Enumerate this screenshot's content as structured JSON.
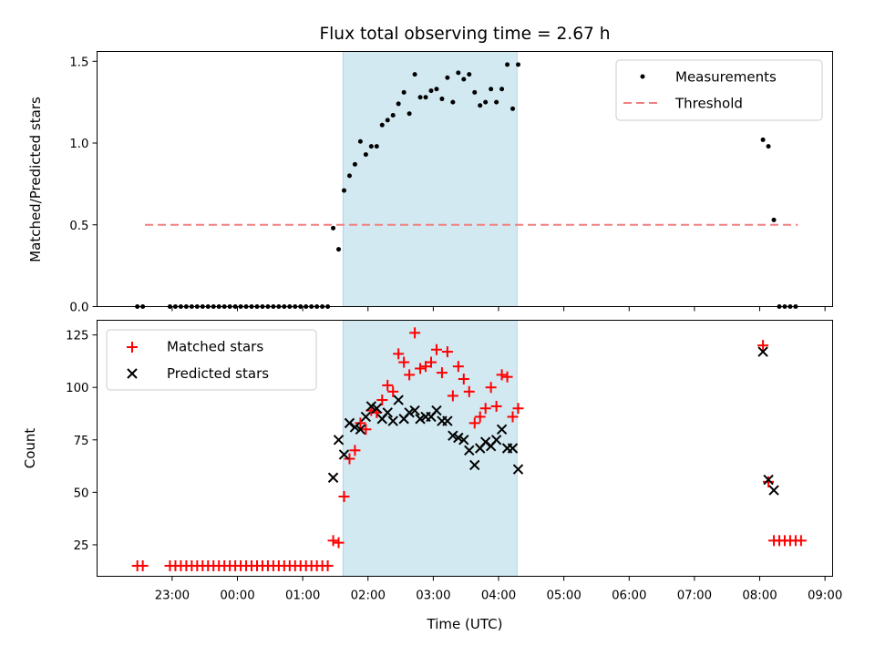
{
  "chart_data": [
    {
      "type": "scatter",
      "title": "Flux total observing time = 2.67 h",
      "ylabel": "Matched/Predicted stars",
      "ylim": [
        0,
        1.56
      ],
      "yticks": [
        0.0,
        0.5,
        1.0,
        1.5
      ],
      "ytick_labels": [
        "0.0",
        "0.5",
        "1.0",
        "1.5"
      ],
      "shaded_span": {
        "x_start": "01:37",
        "x_end": "04:17",
        "color": "#d2e9f1"
      },
      "legend": {
        "position": "top-right",
        "entries": [
          "Measurements",
          "Threshold"
        ]
      },
      "threshold": {
        "name": "Threshold",
        "y": 0.5,
        "x_start": "22:35",
        "x_end": "08:35",
        "color": "#f08080",
        "style": "dashed"
      },
      "series": [
        {
          "name": "Measurements",
          "color": "#000000",
          "marker": "dot",
          "points": [
            {
              "x": "22:28",
              "y": 0
            },
            {
              "x": "22:33",
              "y": 0
            },
            {
              "x": "22:58",
              "y": 0
            },
            {
              "x": "23:03",
              "y": 0
            },
            {
              "x": "23:08",
              "y": 0
            },
            {
              "x": "23:13",
              "y": 0
            },
            {
              "x": "23:18",
              "y": 0
            },
            {
              "x": "23:23",
              "y": 0
            },
            {
              "x": "23:28",
              "y": 0
            },
            {
              "x": "23:33",
              "y": 0
            },
            {
              "x": "23:38",
              "y": 0
            },
            {
              "x": "23:43",
              "y": 0
            },
            {
              "x": "23:48",
              "y": 0
            },
            {
              "x": "23:53",
              "y": 0
            },
            {
              "x": "23:58",
              "y": 0
            },
            {
              "x": "00:03",
              "y": 0
            },
            {
              "x": "00:08",
              "y": 0
            },
            {
              "x": "00:13",
              "y": 0
            },
            {
              "x": "00:18",
              "y": 0
            },
            {
              "x": "00:23",
              "y": 0
            },
            {
              "x": "00:28",
              "y": 0
            },
            {
              "x": "00:33",
              "y": 0
            },
            {
              "x": "00:38",
              "y": 0
            },
            {
              "x": "00:43",
              "y": 0
            },
            {
              "x": "00:48",
              "y": 0
            },
            {
              "x": "00:53",
              "y": 0
            },
            {
              "x": "00:58",
              "y": 0
            },
            {
              "x": "01:03",
              "y": 0
            },
            {
              "x": "01:08",
              "y": 0
            },
            {
              "x": "01:13",
              "y": 0
            },
            {
              "x": "01:18",
              "y": 0
            },
            {
              "x": "01:23",
              "y": 0
            },
            {
              "x": "01:28",
              "y": 0.48
            },
            {
              "x": "01:33",
              "y": 0.35
            },
            {
              "x": "01:38",
              "y": 0.71
            },
            {
              "x": "01:43",
              "y": 0.8
            },
            {
              "x": "01:48",
              "y": 0.87
            },
            {
              "x": "01:53",
              "y": 1.01
            },
            {
              "x": "01:58",
              "y": 0.93
            },
            {
              "x": "02:03",
              "y": 0.98
            },
            {
              "x": "02:08",
              "y": 0.98
            },
            {
              "x": "02:13",
              "y": 1.11
            },
            {
              "x": "02:18",
              "y": 1.14
            },
            {
              "x": "02:23",
              "y": 1.17
            },
            {
              "x": "02:28",
              "y": 1.24
            },
            {
              "x": "02:33",
              "y": 1.31
            },
            {
              "x": "02:38",
              "y": 1.18
            },
            {
              "x": "02:43",
              "y": 1.42
            },
            {
              "x": "02:48",
              "y": 1.28
            },
            {
              "x": "02:53",
              "y": 1.28
            },
            {
              "x": "02:58",
              "y": 1.32
            },
            {
              "x": "03:03",
              "y": 1.33
            },
            {
              "x": "03:08",
              "y": 1.27
            },
            {
              "x": "03:13",
              "y": 1.4
            },
            {
              "x": "03:18",
              "y": 1.25
            },
            {
              "x": "03:23",
              "y": 1.43
            },
            {
              "x": "03:28",
              "y": 1.39
            },
            {
              "x": "03:33",
              "y": 1.42
            },
            {
              "x": "03:38",
              "y": 1.31
            },
            {
              "x": "03:43",
              "y": 1.23
            },
            {
              "x": "03:48",
              "y": 1.25
            },
            {
              "x": "03:53",
              "y": 1.33
            },
            {
              "x": "03:58",
              "y": 1.25
            },
            {
              "x": "04:03",
              "y": 1.33
            },
            {
              "x": "04:08",
              "y": 1.48
            },
            {
              "x": "04:13",
              "y": 1.21
            },
            {
              "x": "04:18",
              "y": 1.48
            },
            {
              "x": "08:03",
              "y": 1.02
            },
            {
              "x": "08:08",
              "y": 0.98
            },
            {
              "x": "08:13",
              "y": 0.53
            },
            {
              "x": "08:18",
              "y": 0
            },
            {
              "x": "08:23",
              "y": 0
            },
            {
              "x": "08:28",
              "y": 0
            },
            {
              "x": "08:33",
              "y": 0
            }
          ]
        }
      ]
    },
    {
      "type": "scatter",
      "xlabel": "Time (UTC)",
      "ylabel": "Count",
      "ylim": [
        10,
        132
      ],
      "yticks": [
        25,
        50,
        75,
        100,
        125
      ],
      "ytick_labels": [
        "25",
        "50",
        "75",
        "100",
        "125"
      ],
      "xticks": [
        "23:00",
        "00:00",
        "01:00",
        "02:00",
        "03:00",
        "04:00",
        "05:00",
        "06:00",
        "07:00",
        "08:00",
        "09:00"
      ],
      "shaded_span": {
        "x_start": "01:37",
        "x_end": "04:17",
        "color": "#d2e9f1"
      },
      "legend": {
        "position": "top-left",
        "entries": [
          "Matched stars",
          "Predicted stars"
        ]
      },
      "series": [
        {
          "name": "Matched stars",
          "color": "#ff0000",
          "marker": "plus",
          "points": [
            {
              "x": "22:28",
              "y": 15
            },
            {
              "x": "22:33",
              "y": 15
            },
            {
              "x": "22:58",
              "y": 15
            },
            {
              "x": "23:03",
              "y": 15
            },
            {
              "x": "23:08",
              "y": 15
            },
            {
              "x": "23:13",
              "y": 15
            },
            {
              "x": "23:18",
              "y": 15
            },
            {
              "x": "23:23",
              "y": 15
            },
            {
              "x": "23:28",
              "y": 15
            },
            {
              "x": "23:33",
              "y": 15
            },
            {
              "x": "23:38",
              "y": 15
            },
            {
              "x": "23:43",
              "y": 15
            },
            {
              "x": "23:48",
              "y": 15
            },
            {
              "x": "23:53",
              "y": 15
            },
            {
              "x": "23:58",
              "y": 15
            },
            {
              "x": "00:03",
              "y": 15
            },
            {
              "x": "00:08",
              "y": 15
            },
            {
              "x": "00:13",
              "y": 15
            },
            {
              "x": "00:18",
              "y": 15
            },
            {
              "x": "00:23",
              "y": 15
            },
            {
              "x": "00:28",
              "y": 15
            },
            {
              "x": "00:33",
              "y": 15
            },
            {
              "x": "00:38",
              "y": 15
            },
            {
              "x": "00:43",
              "y": 15
            },
            {
              "x": "00:48",
              "y": 15
            },
            {
              "x": "00:53",
              "y": 15
            },
            {
              "x": "00:58",
              "y": 15
            },
            {
              "x": "01:03",
              "y": 15
            },
            {
              "x": "01:08",
              "y": 15
            },
            {
              "x": "01:13",
              "y": 15
            },
            {
              "x": "01:18",
              "y": 15
            },
            {
              "x": "01:23",
              "y": 15
            },
            {
              "x": "01:28",
              "y": 27
            },
            {
              "x": "01:33",
              "y": 26
            },
            {
              "x": "01:38",
              "y": 48
            },
            {
              "x": "01:43",
              "y": 66
            },
            {
              "x": "01:48",
              "y": 70
            },
            {
              "x": "01:53",
              "y": 83
            },
            {
              "x": "01:58",
              "y": 80
            },
            {
              "x": "02:03",
              "y": 89
            },
            {
              "x": "02:08",
              "y": 88
            },
            {
              "x": "02:13",
              "y": 94
            },
            {
              "x": "02:18",
              "y": 101
            },
            {
              "x": "02:23",
              "y": 98
            },
            {
              "x": "02:28",
              "y": 116
            },
            {
              "x": "02:33",
              "y": 112
            },
            {
              "x": "02:38",
              "y": 106
            },
            {
              "x": "02:43",
              "y": 126
            },
            {
              "x": "02:48",
              "y": 109
            },
            {
              "x": "02:53",
              "y": 110
            },
            {
              "x": "02:58",
              "y": 112
            },
            {
              "x": "03:03",
              "y": 118
            },
            {
              "x": "03:08",
              "y": 107
            },
            {
              "x": "03:13",
              "y": 117
            },
            {
              "x": "03:18",
              "y": 96
            },
            {
              "x": "03:23",
              "y": 110
            },
            {
              "x": "03:28",
              "y": 104
            },
            {
              "x": "03:33",
              "y": 98
            },
            {
              "x": "03:38",
              "y": 83
            },
            {
              "x": "03:43",
              "y": 86
            },
            {
              "x": "03:48",
              "y": 90
            },
            {
              "x": "03:53",
              "y": 100
            },
            {
              "x": "03:58",
              "y": 91
            },
            {
              "x": "04:03",
              "y": 106
            },
            {
              "x": "04:08",
              "y": 105
            },
            {
              "x": "04:13",
              "y": 86
            },
            {
              "x": "04:18",
              "y": 90
            },
            {
              "x": "08:03",
              "y": 120
            },
            {
              "x": "08:08",
              "y": 55
            },
            {
              "x": "08:13",
              "y": 27
            },
            {
              "x": "08:18",
              "y": 27
            },
            {
              "x": "08:23",
              "y": 27
            },
            {
              "x": "08:28",
              "y": 27
            },
            {
              "x": "08:33",
              "y": 27
            },
            {
              "x": "08:38",
              "y": 27
            }
          ]
        },
        {
          "name": "Predicted stars",
          "color": "#000000",
          "marker": "x",
          "points": [
            {
              "x": "01:28",
              "y": 57
            },
            {
              "x": "01:33",
              "y": 75
            },
            {
              "x": "01:38",
              "y": 68
            },
            {
              "x": "01:43",
              "y": 83
            },
            {
              "x": "01:48",
              "y": 81
            },
            {
              "x": "01:53",
              "y": 80
            },
            {
              "x": "01:58",
              "y": 86
            },
            {
              "x": "02:03",
              "y": 91
            },
            {
              "x": "02:08",
              "y": 90
            },
            {
              "x": "02:13",
              "y": 85
            },
            {
              "x": "02:18",
              "y": 88
            },
            {
              "x": "02:23",
              "y": 84
            },
            {
              "x": "02:28",
              "y": 94
            },
            {
              "x": "02:33",
              "y": 85
            },
            {
              "x": "02:38",
              "y": 88
            },
            {
              "x": "02:43",
              "y": 89
            },
            {
              "x": "02:48",
              "y": 85
            },
            {
              "x": "02:53",
              "y": 86
            },
            {
              "x": "02:58",
              "y": 86
            },
            {
              "x": "03:03",
              "y": 89
            },
            {
              "x": "03:08",
              "y": 84
            },
            {
              "x": "03:13",
              "y": 84
            },
            {
              "x": "03:18",
              "y": 77
            },
            {
              "x": "03:23",
              "y": 76
            },
            {
              "x": "03:28",
              "y": 75
            },
            {
              "x": "03:33",
              "y": 70
            },
            {
              "x": "03:38",
              "y": 63
            },
            {
              "x": "03:43",
              "y": 71
            },
            {
              "x": "03:48",
              "y": 74
            },
            {
              "x": "03:53",
              "y": 72
            },
            {
              "x": "03:58",
              "y": 75
            },
            {
              "x": "04:03",
              "y": 80
            },
            {
              "x": "04:08",
              "y": 71
            },
            {
              "x": "04:13",
              "y": 71
            },
            {
              "x": "04:18",
              "y": 61
            },
            {
              "x": "08:03",
              "y": 117
            },
            {
              "x": "08:08",
              "y": 56
            },
            {
              "x": "08:13",
              "y": 51
            }
          ]
        }
      ]
    }
  ]
}
